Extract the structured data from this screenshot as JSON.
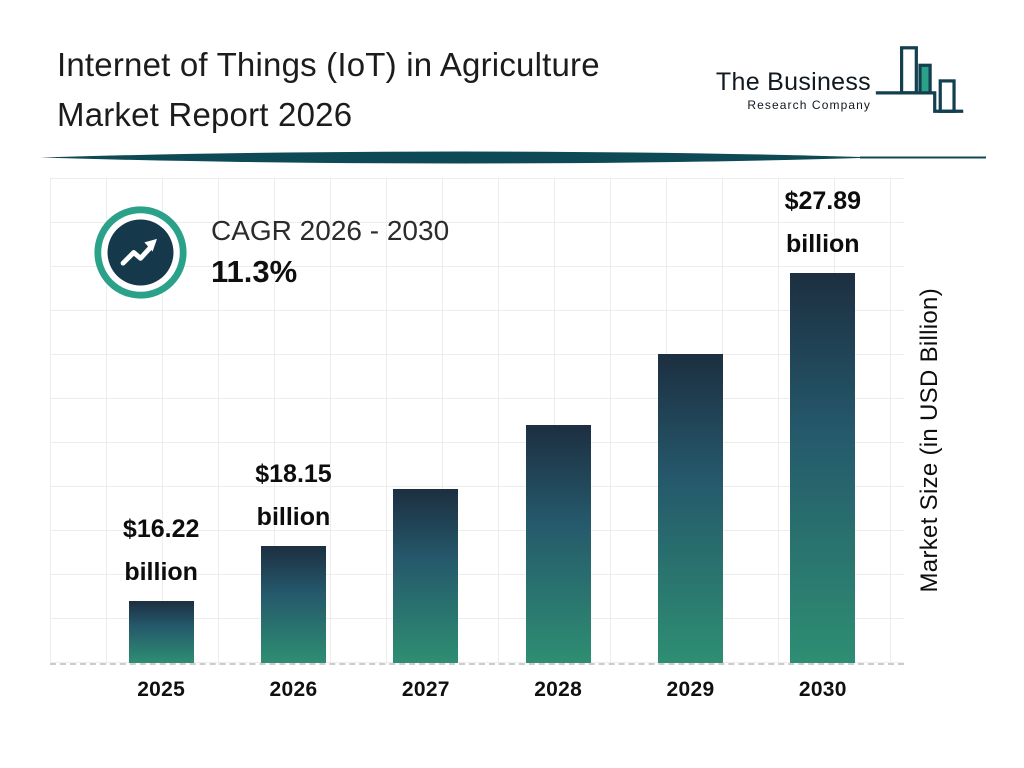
{
  "header": {
    "title_line1": "Internet of Things (IoT) in Agriculture",
    "title_line2": "Market Report 2026",
    "logo": {
      "name_line1": "The Business",
      "name_line2": "Research Company"
    }
  },
  "cagr_badge": {
    "label": "CAGR 2026 - 2030",
    "value": "11.3%"
  },
  "chart_data": {
    "type": "bar",
    "title": "Internet of Things (IoT) in Agriculture Market Report 2026",
    "categories": [
      "2025",
      "2026",
      "2027",
      "2028",
      "2029",
      "2030"
    ],
    "values": [
      16.22,
      18.15,
      20.2,
      22.48,
      25.02,
      27.89
    ],
    "labeled_bars": {
      "0": {
        "value": "$16.22",
        "unit": "billion"
      },
      "1": {
        "value": "$18.15",
        "unit": "billion"
      },
      "5": {
        "value": "$27.89",
        "unit": "billion"
      }
    },
    "annotations": [
      "CAGR 2026 - 2030: 11.3%"
    ],
    "xlabel": "",
    "ylabel": "Market Size (in USD Billion)",
    "ylim": [
      14,
      28.6
    ],
    "grid": true,
    "legend": false,
    "colors": {
      "bar_gradient_top": "#1c2f40",
      "bar_gradient_bottom": "#2e8e72",
      "accent_dark": "#0e4a55",
      "accent_teal": "#2aa188",
      "badge_inner": "#15384a"
    }
  }
}
